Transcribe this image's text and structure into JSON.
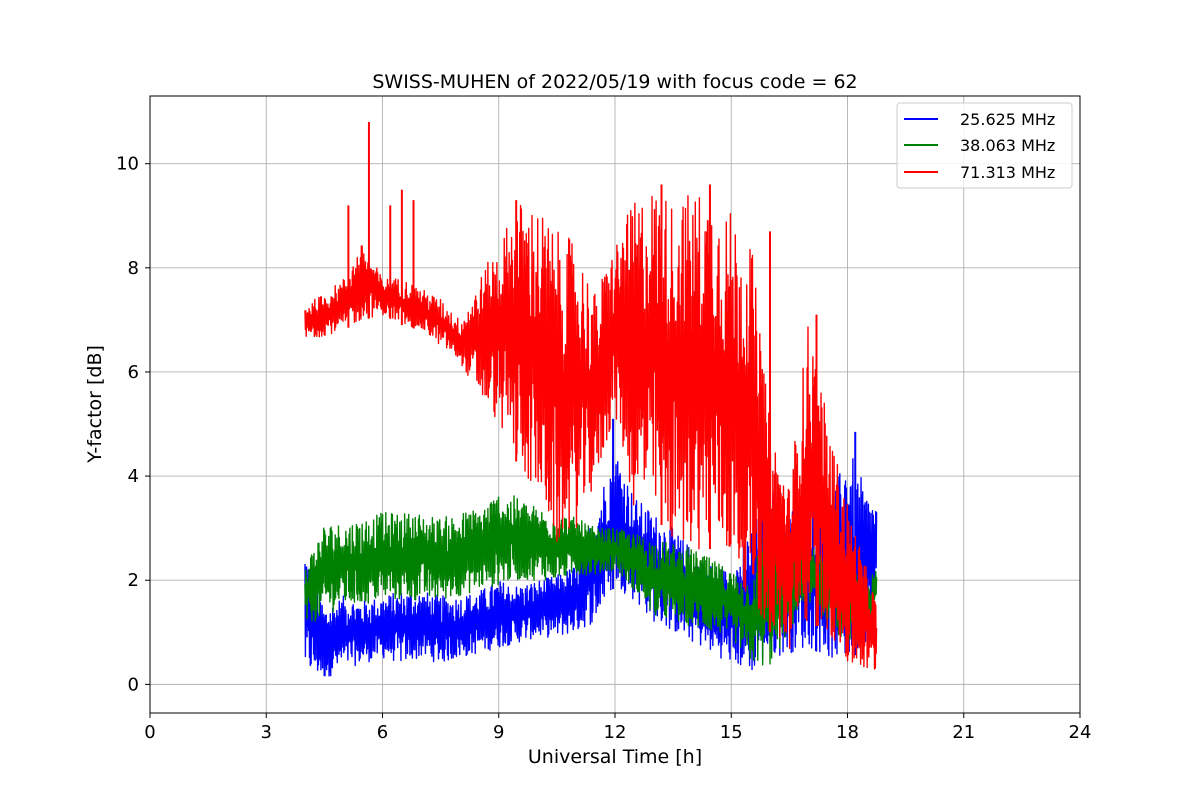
{
  "chart_data": {
    "type": "line",
    "title": "SWISS-MUHEN of 2022/05/19 with focus code = 62",
    "xlabel": "Universal Time [h]",
    "ylabel": "Y-factor [dB]",
    "xlim": [
      0,
      24
    ],
    "ylim": [
      -0.55,
      11.3
    ],
    "xticks": [
      0,
      3,
      6,
      9,
      12,
      15,
      18,
      21,
      24
    ],
    "yticks": [
      0,
      2,
      4,
      6,
      8,
      10
    ],
    "xtick_labels": [
      "0",
      "3",
      "6",
      "9",
      "12",
      "15",
      "18",
      "21",
      "24"
    ],
    "ytick_labels": [
      "0",
      "2",
      "4",
      "6",
      "8",
      "10"
    ],
    "grid": true,
    "legend_position": "top-right",
    "series": [
      {
        "name": "25.625 MHz",
        "color": "#0000ff",
        "x": [
          4.0,
          4.5,
          5.0,
          5.5,
          6.0,
          6.5,
          7.0,
          7.5,
          8.0,
          8.5,
          9.0,
          9.5,
          10.0,
          10.5,
          11.0,
          11.5,
          12.0,
          12.5,
          13.0,
          13.5,
          14.0,
          14.5,
          15.0,
          15.5,
          16.0,
          16.5,
          17.0,
          17.5,
          18.0,
          18.5,
          18.75
        ],
        "low": [
          0.2,
          0.1,
          0.3,
          0.4,
          0.5,
          0.4,
          0.5,
          0.4,
          0.5,
          0.6,
          0.7,
          0.8,
          0.9,
          0.9,
          1.0,
          1.2,
          1.9,
          1.6,
          1.2,
          1.0,
          0.8,
          0.6,
          0.4,
          0.2,
          0.5,
          0.6,
          0.7,
          0.5,
          0.4,
          0.8,
          1.6
        ],
        "high": [
          2.7,
          1.5,
          1.7,
          1.6,
          1.7,
          1.8,
          1.8,
          1.7,
          1.7,
          1.8,
          2.0,
          1.9,
          2.0,
          2.1,
          2.3,
          3.4,
          4.6,
          3.6,
          3.3,
          3.0,
          2.6,
          2.3,
          2.2,
          3.0,
          3.7,
          3.4,
          3.8,
          3.3,
          4.6,
          3.7,
          3.5
        ]
      },
      {
        "name": "38.063 MHz",
        "color": "#008000",
        "x": [
          4.0,
          4.5,
          5.0,
          5.5,
          6.0,
          6.5,
          7.0,
          7.5,
          8.0,
          8.5,
          9.0,
          9.5,
          10.0,
          10.5,
          11.0,
          11.5,
          12.0,
          12.5,
          13.0,
          13.5,
          14.0,
          14.5,
          15.0,
          15.5,
          16.0,
          16.5,
          17.0,
          17.5,
          18.0,
          18.5,
          18.75
        ],
        "low": [
          1.1,
          1.3,
          1.5,
          1.5,
          1.6,
          1.6,
          1.6,
          1.6,
          1.7,
          1.8,
          1.9,
          2.0,
          2.0,
          2.0,
          2.1,
          2.1,
          2.2,
          1.8,
          1.3,
          1.2,
          1.1,
          1.0,
          0.9,
          0.4,
          0.3,
          1.0,
          1.6,
          1.1,
          0.8,
          0.8,
          1.6
        ],
        "high": [
          2.3,
          3.1,
          3.1,
          3.2,
          3.3,
          3.3,
          3.3,
          3.2,
          3.3,
          3.4,
          3.7,
          3.6,
          3.4,
          3.3,
          3.2,
          3.0,
          3.0,
          2.9,
          2.8,
          2.7,
          2.6,
          2.4,
          2.2,
          2.0,
          3.6,
          2.8,
          2.8,
          2.5,
          2.2,
          2.0,
          2.2
        ]
      },
      {
        "name": "71.313 MHz",
        "color": "#ff0000",
        "x": [
          4.0,
          4.5,
          5.0,
          5.5,
          6.0,
          6.5,
          7.0,
          7.5,
          8.0,
          8.5,
          9.0,
          9.5,
          10.0,
          10.5,
          11.0,
          11.5,
          12.0,
          12.5,
          13.0,
          13.5,
          14.0,
          14.5,
          15.0,
          15.5,
          16.0,
          16.5,
          17.0,
          17.5,
          18.0,
          18.5,
          18.75
        ],
        "low": [
          6.6,
          6.7,
          6.8,
          7.0,
          7.1,
          6.9,
          6.8,
          6.5,
          6.2,
          5.5,
          5.0,
          4.2,
          3.6,
          2.6,
          3.0,
          3.8,
          5.2,
          3.3,
          3.3,
          2.7,
          2.6,
          2.6,
          2.3,
          1.6,
          1.0,
          0.6,
          1.2,
          1.0,
          0.3,
          0.2,
          0.2
        ],
        "high": [
          7.3,
          7.5,
          7.8,
          8.5,
          7.8,
          7.8,
          7.6,
          7.4,
          7.0,
          7.8,
          8.5,
          9.3,
          9.2,
          8.7,
          8.5,
          7.5,
          8.5,
          9.3,
          9.6,
          9.3,
          9.5,
          9.5,
          9.1,
          8.6,
          5.0,
          3.8,
          7.1,
          5.0,
          3.5,
          2.2,
          1.6
        ]
      }
    ],
    "spikes": [
      {
        "series": 2,
        "x": 5.12,
        "y": 9.2
      },
      {
        "series": 2,
        "x": 5.65,
        "y": 10.8
      },
      {
        "series": 2,
        "x": 6.2,
        "y": 9.2
      },
      {
        "series": 2,
        "x": 6.5,
        "y": 9.5
      },
      {
        "series": 2,
        "x": 6.8,
        "y": 9.3
      },
      {
        "series": 2,
        "x": 9.45,
        "y": 9.3
      },
      {
        "series": 2,
        "x": 13.2,
        "y": 9.6
      },
      {
        "series": 2,
        "x": 14.45,
        "y": 9.6
      },
      {
        "series": 2,
        "x": 16.0,
        "y": 8.7
      },
      {
        "series": 2,
        "x": 17.2,
        "y": 7.1
      },
      {
        "series": 0,
        "x": 11.95,
        "y": 5.1
      },
      {
        "series": 0,
        "x": 18.2,
        "y": 4.85
      }
    ]
  }
}
